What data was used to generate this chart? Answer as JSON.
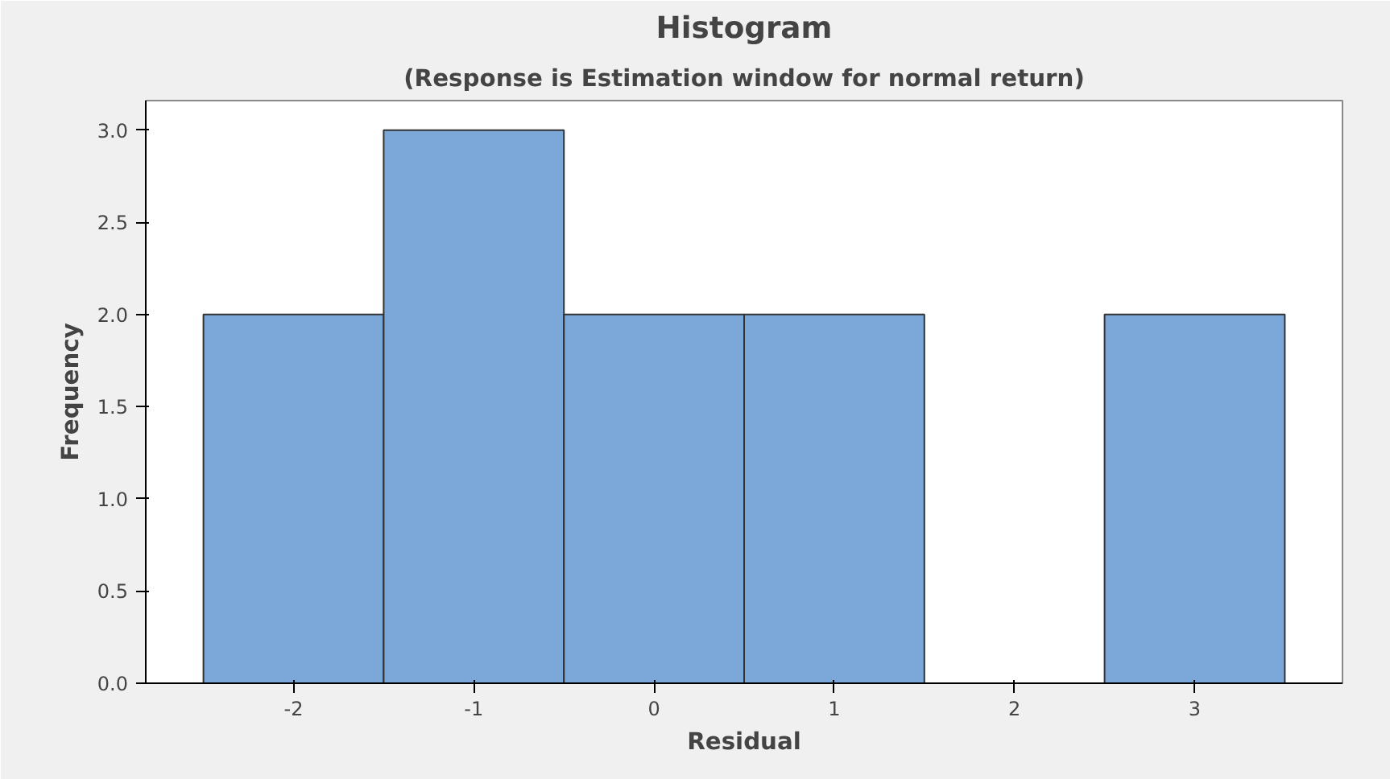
{
  "chart_data": {
    "type": "histogram",
    "title": "Histogram",
    "subtitle": "(Response is Estimation window for normal return)",
    "xlabel": "Residual",
    "ylabel": "Frequency",
    "bins": [
      -2.5,
      -1.5,
      -0.5,
      0.5,
      1.5,
      2.5,
      3.5
    ],
    "values": [
      2,
      3,
      2,
      2,
      0,
      2
    ],
    "color": "#7ba7d9",
    "xlim": [
      -2.82,
      3.82
    ],
    "ylim": [
      0,
      3.16
    ],
    "xticks": [
      -2,
      -1,
      0,
      1,
      2,
      3
    ],
    "yticks": [
      {
        "value": 0,
        "label": "0.0"
      },
      {
        "value": 0.5,
        "label": "0.5"
      },
      {
        "value": 1,
        "label": "1.0"
      },
      {
        "value": 1.5,
        "label": "1.5"
      },
      {
        "value": 2,
        "label": "2.0"
      },
      {
        "value": 2.5,
        "label": "2.5"
      },
      {
        "value": 3,
        "label": "3.0"
      }
    ],
    "grid": false
  }
}
